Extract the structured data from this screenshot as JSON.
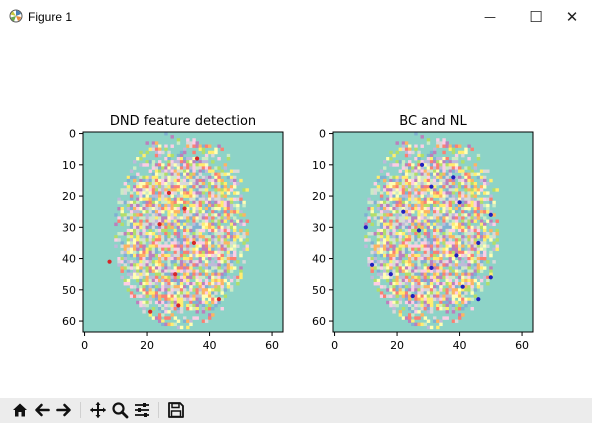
{
  "window": {
    "title": "Figure 1",
    "minimize_glyph": "—",
    "maximize_glyph": "☐",
    "close_glyph": "✕"
  },
  "figure": {
    "heatmap_palette": [
      "#8dd3c7",
      "#ffffb3",
      "#bebada",
      "#fb8072",
      "#80b1d3",
      "#fdb462",
      "#b3de69",
      "#fccde5",
      "#d9d9d9",
      "#bc80bd",
      "#ccebc5",
      "#ffed6f"
    ],
    "background_color": "#8dd3c7"
  },
  "chart_data": [
    {
      "type": "heatmap",
      "title": "DND feature detection",
      "xlabel": "",
      "ylabel": "",
      "xlim": [
        -0.5,
        63.5
      ],
      "ylim": [
        63.5,
        -0.5
      ],
      "xticks": [
        0,
        20,
        40,
        60
      ],
      "yticks": [
        0,
        10,
        20,
        30,
        40,
        50,
        60
      ],
      "overlay_color": "#d62728",
      "overlay_points": [
        {
          "x": 36,
          "y": 8
        },
        {
          "x": 27,
          "y": 19
        },
        {
          "x": 32,
          "y": 24
        },
        {
          "x": 24,
          "y": 29
        },
        {
          "x": 35,
          "y": 35
        },
        {
          "x": 8,
          "y": 41
        },
        {
          "x": 29,
          "y": 45
        },
        {
          "x": 30,
          "y": 55
        },
        {
          "x": 43,
          "y": 53
        },
        {
          "x": 21,
          "y": 57
        }
      ]
    },
    {
      "type": "heatmap",
      "title": "BC and NL",
      "xlabel": "",
      "ylabel": "",
      "xlim": [
        -0.5,
        63.5
      ],
      "ylim": [
        63.5,
        -0.5
      ],
      "xticks": [
        0,
        20,
        40,
        60
      ],
      "yticks": [
        0,
        10,
        20,
        30,
        40,
        50,
        60
      ],
      "overlay_color": "#1f1fbf",
      "overlay_points": [
        {
          "x": 28,
          "y": 10
        },
        {
          "x": 38,
          "y": 14
        },
        {
          "x": 31,
          "y": 17
        },
        {
          "x": 40,
          "y": 22
        },
        {
          "x": 22,
          "y": 25
        },
        {
          "x": 50,
          "y": 26
        },
        {
          "x": 10,
          "y": 30
        },
        {
          "x": 27,
          "y": 31
        },
        {
          "x": 46,
          "y": 35
        },
        {
          "x": 39,
          "y": 39
        },
        {
          "x": 12,
          "y": 42
        },
        {
          "x": 31,
          "y": 43
        },
        {
          "x": 18,
          "y": 45
        },
        {
          "x": 50,
          "y": 46
        },
        {
          "x": 41,
          "y": 49
        },
        {
          "x": 25,
          "y": 52
        },
        {
          "x": 46,
          "y": 53
        }
      ]
    }
  ],
  "toolbar": {
    "buttons": [
      {
        "name": "home-icon"
      },
      {
        "name": "back-arrow-icon"
      },
      {
        "name": "forward-arrow-icon"
      },
      {
        "name": "pan-move-icon"
      },
      {
        "name": "zoom-magnifier-icon"
      },
      {
        "name": "configure-subplots-icon"
      },
      {
        "name": "save-floppy-icon"
      }
    ]
  }
}
